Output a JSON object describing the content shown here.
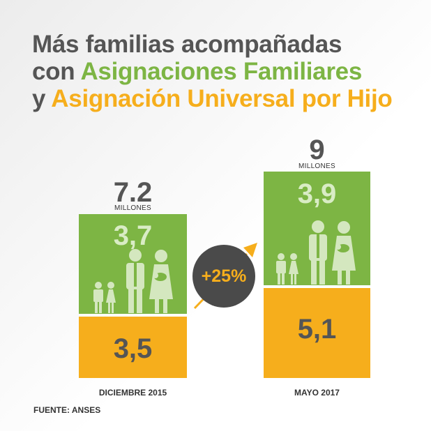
{
  "title": {
    "line1": "Más familias acompañadas",
    "line2_prefix": "con ",
    "line2_highlight": "Asignaciones Familiares",
    "line3_prefix": "y ",
    "line3_highlight": "Asignación Universal por Hijo"
  },
  "colors": {
    "title_gray": "#555555",
    "asignaciones_green": "#7db544",
    "auh_orange": "#f6ae1c",
    "segment_text_light": "#d9ecc5",
    "segment_text_dark": "#555555",
    "badge_gray": "#4a4a4a",
    "family_icon": "#d4e7bf"
  },
  "chart_data": {
    "type": "bar",
    "stacked": true,
    "categories": [
      "DICIEMBRE 2015",
      "MAYO 2017"
    ],
    "series": [
      {
        "name": "Asignación Universal por Hijo",
        "values": [
          3.5,
          5.1
        ]
      },
      {
        "name": "Asignaciones Familiares",
        "values": [
          3.7,
          3.9
        ]
      }
    ],
    "totals": [
      "7.2",
      "9"
    ],
    "totals_unit": "MILLONES",
    "value_labels": [
      [
        "3,5",
        "5,1"
      ],
      [
        "3,7",
        "3,9"
      ]
    ],
    "change_label": "+25%",
    "ylim": [
      0,
      9
    ]
  },
  "icons": {
    "family": "family-icon",
    "arrow": "arrow-up-right-icon"
  },
  "source": "FUENTE: ANSES"
}
